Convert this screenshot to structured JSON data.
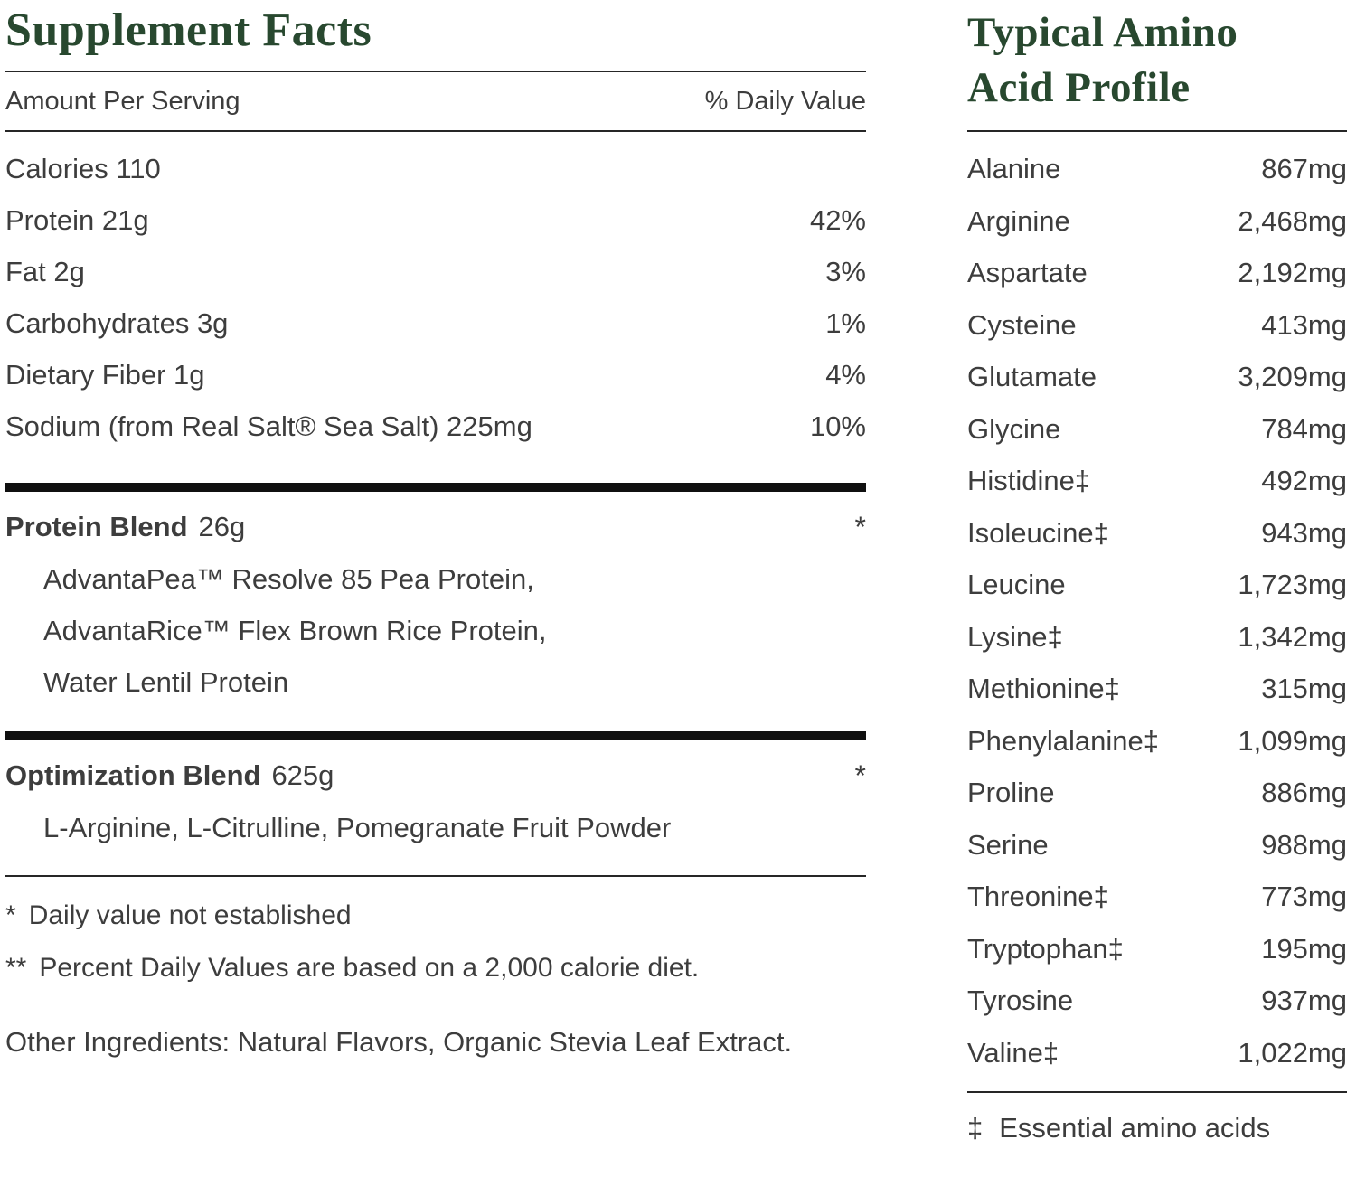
{
  "colors": {
    "accent_green": "#28482f",
    "body_text": "#3d3d3d",
    "divider": "#262626",
    "thick_bar": "#101010"
  },
  "supplement": {
    "title": "Supplement Facts",
    "header": {
      "left": "Amount Per Serving",
      "right": "% Daily Value"
    },
    "rows": [
      {
        "label": "Calories 110",
        "value": ""
      },
      {
        "label": "Protein 21g",
        "value": "42%"
      },
      {
        "label": "Fat 2g",
        "value": "3%"
      },
      {
        "label": "Carbohydrates 3g",
        "value": "1%"
      },
      {
        "label": "Dietary Fiber 1g",
        "value": "4%"
      },
      {
        "label": "Sodium (from Real Salt® Sea Salt) 225mg",
        "value": "10%"
      }
    ],
    "blends": [
      {
        "name": "Protein Blend",
        "amount": "26g",
        "daily": "*",
        "ingredients": [
          "AdvantaPea™ Resolve 85 Pea Protein,",
          "AdvantaRice™ Flex Brown Rice Protein,",
          "Water Lentil Protein"
        ]
      },
      {
        "name": "Optimization Blend",
        "amount": "625g",
        "daily": "*",
        "ingredients_text": "L-Arginine, L-Citrulline, Pomegranate Fruit Powder"
      }
    ],
    "footnotes": [
      {
        "marker": "*",
        "text": "Daily value not established"
      },
      {
        "marker": "**",
        "text": "Percent Daily Values are based on a 2,000 calorie diet."
      }
    ],
    "other_ingredients": "Other Ingredients: Natural Flavors, Organic Stevia Leaf Extract."
  },
  "amino": {
    "title_line1": "Typical Amino",
    "title_line2": "Acid Profile",
    "rows": [
      {
        "name": "Alanine",
        "value": "867mg"
      },
      {
        "name": "Arginine",
        "value": "2,468mg"
      },
      {
        "name": "Aspartate",
        "value": "2,192mg"
      },
      {
        "name": "Cysteine",
        "value": "413mg"
      },
      {
        "name": "Glutamate",
        "value": "3,209mg"
      },
      {
        "name": "Glycine",
        "value": "784mg"
      },
      {
        "name": "Histidine‡",
        "value": "492mg"
      },
      {
        "name": "Isoleucine‡",
        "value": "943mg"
      },
      {
        "name": "Leucine",
        "value": "1,723mg"
      },
      {
        "name": "Lysine‡",
        "value": "1,342mg"
      },
      {
        "name": "Methionine‡",
        "value": "315mg"
      },
      {
        "name": "Phenylalanine‡",
        "value": "1,099mg"
      },
      {
        "name": "Proline",
        "value": "886mg"
      },
      {
        "name": "Serine",
        "value": "988mg"
      },
      {
        "name": "Threonine‡",
        "value": "773mg"
      },
      {
        "name": "Tryptophan‡",
        "value": "195mg"
      },
      {
        "name": "Tyrosine",
        "value": "937mg"
      },
      {
        "name": "Valine‡",
        "value": "1,022mg"
      }
    ],
    "footnote_marker": "‡",
    "footnote_text": "Essential amino acids"
  }
}
